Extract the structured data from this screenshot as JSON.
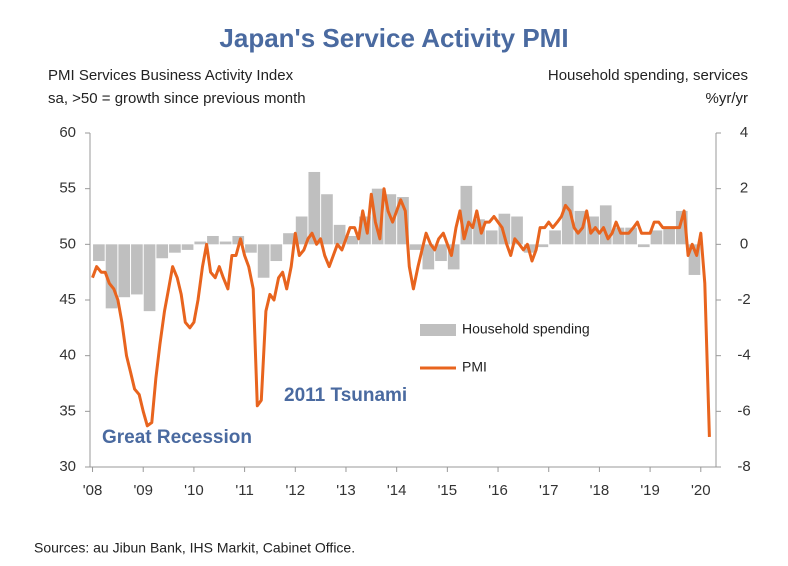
{
  "chart_data": {
    "type": "bar_line",
    "title": "Japan's Service Activity PMI",
    "y_label": [
      "PMI Services Business Activity Index",
      "sa, >50 = growth since previous month"
    ],
    "y2_label": [
      "Household spending, services",
      "%yr/yr"
    ],
    "source": "Sources: au Jibun Bank, IHS Markit, Cabinet Office.",
    "annotations": [
      "2011 Tsunami",
      "Great Recession"
    ],
    "xlim": [
      2007.95,
      2020.3
    ],
    "xticks": [
      {
        "value": 2008,
        "label": "'08"
      },
      {
        "value": 2009,
        "label": "'09"
      },
      {
        "value": 2010,
        "label": "'10"
      },
      {
        "value": 2011,
        "label": "'11"
      },
      {
        "value": 2012,
        "label": "'12"
      },
      {
        "value": 2013,
        "label": "'13"
      },
      {
        "value": 2014,
        "label": "'14"
      },
      {
        "value": 2015,
        "label": "'15"
      },
      {
        "value": 2016,
        "label": "'16"
      },
      {
        "value": 2017,
        "label": "'17"
      },
      {
        "value": 2018,
        "label": "'18"
      },
      {
        "value": 2019,
        "label": "'19"
      },
      {
        "value": 2020,
        "label": "'20"
      }
    ],
    "ylim": [
      30,
      60
    ],
    "yticks": [
      30,
      35,
      40,
      45,
      50,
      55,
      60
    ],
    "y2lim": [
      -8,
      4
    ],
    "y2ticks": [
      -8,
      -6,
      -4,
      -2,
      0,
      2,
      4
    ],
    "series": [
      {
        "name": "Household spending",
        "kind": "bar",
        "axis": "y2",
        "color": "#bfbfbf",
        "x": [
          2008,
          2008.25,
          2008.5,
          2008.75,
          2009,
          2009.25,
          2009.5,
          2009.75,
          2010,
          2010.25,
          2010.5,
          2010.75,
          2011,
          2011.25,
          2011.5,
          2011.75,
          2012,
          2012.25,
          2012.5,
          2012.75,
          2013,
          2013.25,
          2013.5,
          2013.75,
          2014,
          2014.25,
          2014.5,
          2014.75,
          2015,
          2015.25,
          2015.5,
          2015.75,
          2016,
          2016.25,
          2016.5,
          2016.75,
          2017,
          2017.25,
          2017.5,
          2017.75,
          2018,
          2018.25,
          2018.5,
          2018.75,
          2019,
          2019.25,
          2019.5,
          2019.75
        ],
        "values": [
          -0.6,
          -2.3,
          -1.9,
          -1.8,
          -2.4,
          -0.5,
          -0.3,
          -0.2,
          0.1,
          0.3,
          0.1,
          0.3,
          -0.3,
          -1.2,
          -0.6,
          0.4,
          1.0,
          2.6,
          1.8,
          0.7,
          0.3,
          1.0,
          2.0,
          1.8,
          1.7,
          -0.2,
          -0.9,
          -0.6,
          -0.9,
          2.1,
          0.9,
          0.5,
          1.1,
          1.0,
          -0.3,
          -0.1,
          0.5,
          2.1,
          1.2,
          1.0,
          1.4,
          0.6,
          0.6,
          -0.1,
          0.5,
          0.6,
          1.2,
          -1.1
        ]
      },
      {
        "name": "PMI",
        "kind": "line",
        "axis": "y",
        "color": "#e8641e",
        "x": [
          2008,
          2008.08,
          2008.17,
          2008.25,
          2008.33,
          2008.42,
          2008.5,
          2008.58,
          2008.67,
          2008.75,
          2008.83,
          2008.92,
          2009,
          2009.08,
          2009.17,
          2009.25,
          2009.33,
          2009.42,
          2009.5,
          2009.58,
          2009.67,
          2009.75,
          2009.83,
          2009.92,
          2010,
          2010.08,
          2010.17,
          2010.25,
          2010.33,
          2010.42,
          2010.5,
          2010.58,
          2010.67,
          2010.75,
          2010.83,
          2010.92,
          2011,
          2011.08,
          2011.17,
          2011.25,
          2011.33,
          2011.42,
          2011.5,
          2011.58,
          2011.67,
          2011.75,
          2011.83,
          2011.92,
          2012,
          2012.08,
          2012.17,
          2012.25,
          2012.33,
          2012.42,
          2012.5,
          2012.58,
          2012.67,
          2012.75,
          2012.83,
          2012.92,
          2013,
          2013.08,
          2013.17,
          2013.25,
          2013.33,
          2013.42,
          2013.5,
          2013.58,
          2013.67,
          2013.75,
          2013.83,
          2013.92,
          2014,
          2014.08,
          2014.17,
          2014.25,
          2014.33,
          2014.42,
          2014.5,
          2014.58,
          2014.67,
          2014.75,
          2014.83,
          2014.92,
          2015,
          2015.08,
          2015.17,
          2015.25,
          2015.33,
          2015.42,
          2015.5,
          2015.58,
          2015.67,
          2015.75,
          2015.83,
          2015.92,
          2016,
          2016.08,
          2016.17,
          2016.25,
          2016.33,
          2016.42,
          2016.5,
          2016.58,
          2016.67,
          2016.75,
          2016.83,
          2016.92,
          2017,
          2017.08,
          2017.17,
          2017.25,
          2017.33,
          2017.42,
          2017.5,
          2017.58,
          2017.67,
          2017.75,
          2017.83,
          2017.92,
          2018,
          2018.08,
          2018.17,
          2018.25,
          2018.33,
          2018.42,
          2018.5,
          2018.58,
          2018.67,
          2018.75,
          2018.83,
          2018.92,
          2019,
          2019.08,
          2019.17,
          2019.25,
          2019.33,
          2019.42,
          2019.5,
          2019.58,
          2019.67,
          2019.75,
          2019.83,
          2019.92,
          2020,
          2020.08,
          2020.17
        ],
        "values": [
          47,
          48,
          47.5,
          47.5,
          46.5,
          46,
          45,
          43,
          40,
          38.5,
          37,
          36.5,
          35,
          33.7,
          34,
          38,
          41,
          44,
          46,
          48,
          47,
          45.5,
          43,
          42.5,
          43,
          45,
          48,
          50,
          47.5,
          47,
          48,
          47,
          46,
          49,
          49,
          50.5,
          49,
          48,
          46,
          35.5,
          36,
          44,
          45.5,
          45,
          47,
          47.5,
          46,
          48,
          51,
          49,
          49.5,
          50.5,
          51,
          50,
          50.5,
          49,
          48,
          49,
          50,
          49.5,
          50.5,
          51.5,
          51.5,
          50.5,
          53,
          51,
          54.5,
          52,
          50.5,
          55,
          53,
          52,
          53,
          54,
          53,
          48,
          46,
          48,
          49.5,
          51,
          50,
          49.5,
          50.5,
          51,
          50,
          49,
          51.5,
          53,
          50.5,
          52,
          51.5,
          53,
          51,
          52,
          52,
          52.5,
          52,
          51.5,
          50,
          49,
          50.5,
          50,
          49.5,
          50,
          48.5,
          49.5,
          51.5,
          51.5,
          52,
          51.5,
          52,
          52.5,
          53.5,
          53,
          51.5,
          51,
          51.5,
          53,
          51,
          51.5,
          51,
          51.5,
          50.5,
          51,
          52,
          51,
          51,
          51,
          51.5,
          52,
          51,
          51,
          51,
          52,
          52,
          51.5,
          51.5,
          51.5,
          51.5,
          51.5,
          53,
          49,
          50,
          49,
          51,
          46.5,
          32.7
        ]
      }
    ]
  }
}
